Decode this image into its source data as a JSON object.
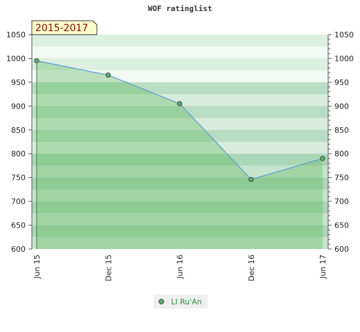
{
  "chart_data": {
    "type": "area",
    "title": "WOF ratinglist",
    "period_label": "2015-2017",
    "categories": [
      "Jun 15",
      "Dec 15",
      "Jun 16",
      "Dec 16",
      "Jun 17"
    ],
    "series": [
      {
        "name": "LI Ru'An",
        "values": [
          995,
          965,
          905,
          746,
          790
        ]
      }
    ],
    "ylim": [
      600,
      1050
    ],
    "yticks": [
      600,
      650,
      700,
      750,
      800,
      850,
      900,
      950,
      1000,
      1050
    ],
    "xlabel": "",
    "ylabel": "",
    "legend_position": "bottom-center",
    "colors": {
      "line": "#5b9bd5",
      "marker": "#5cae6a",
      "fill": "#5cb85c",
      "badge_bg": "#ffffcc"
    }
  }
}
